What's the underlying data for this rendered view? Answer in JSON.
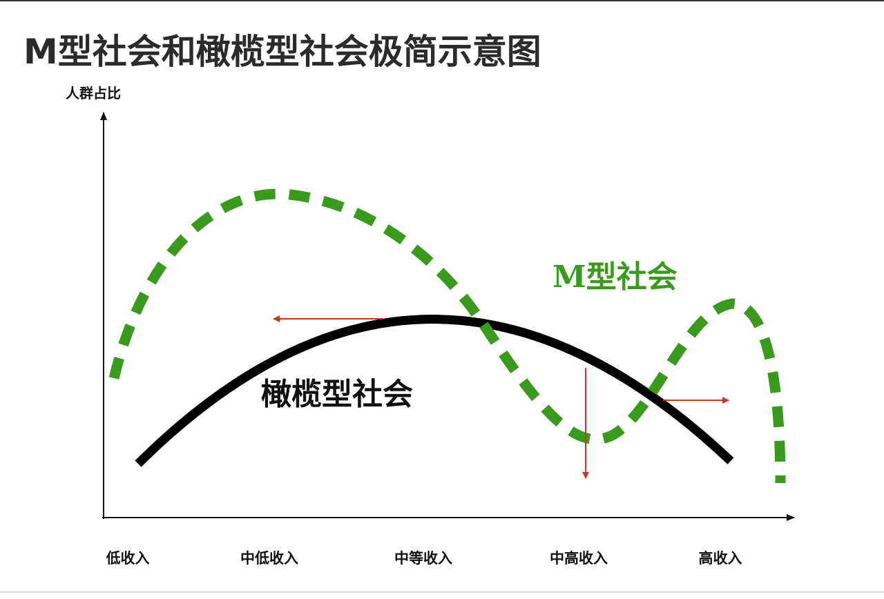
{
  "title": "M型社会和橄榄型社会极简示意图",
  "y_axis_label": "人群占比",
  "x_labels": [
    "低收入",
    "中低收入",
    "中等收入",
    "中高收入",
    "高收入"
  ],
  "curves": {
    "m_society": "M型社会",
    "olive_society": "橄榄型社会"
  }
}
